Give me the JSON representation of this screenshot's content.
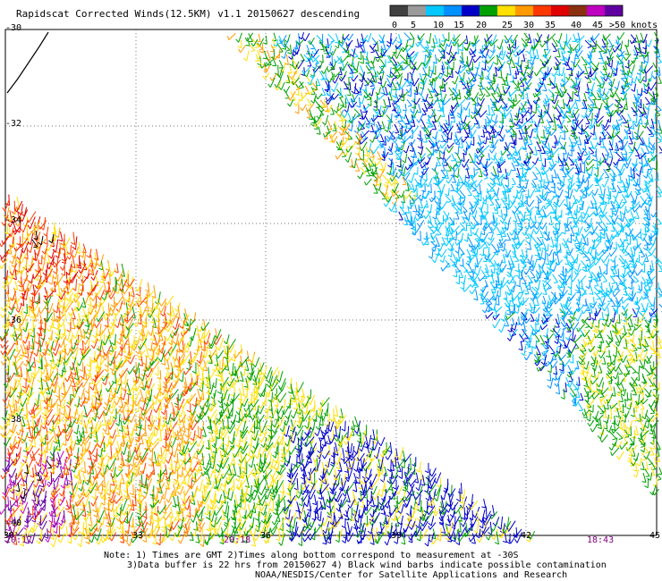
{
  "title": "Rapidscat Corrected Winds(12.5KM) v1.1 20150627 descending",
  "legend": {
    "colors": [
      "#404040",
      "#9a9a9a",
      "#00c8ff",
      "#0090ff",
      "#0000c8",
      "#00a000",
      "#ffe000",
      "#ff9a00",
      "#ff3800",
      "#e00000",
      "#8a3010",
      "#c000c0",
      "#6000a0"
    ],
    "labels": [
      "0",
      "5",
      "10",
      "15",
      "20",
      "25",
      "30",
      "35",
      "40",
      "45",
      ">50 knots"
    ]
  },
  "y_axis": {
    "labels": [
      "-30",
      "-32",
      "-34",
      "-36",
      "-38",
      "-40"
    ]
  },
  "x_axis": {
    "labels": [
      "30",
      "33",
      "36",
      "39",
      "42",
      "45"
    ]
  },
  "times": [
    "20:17",
    "20:18",
    "18:43"
  ],
  "notes": [
    "Note: 1) Times are GMT 2)Times along bottom correspond to measurement at -30S",
    "3)Data buffer is 22 hrs from 20150627 4) Black wind barbs indicate possible contamination",
    "NOAA/NESDIS/Center for Satellite Applications and Research"
  ]
}
